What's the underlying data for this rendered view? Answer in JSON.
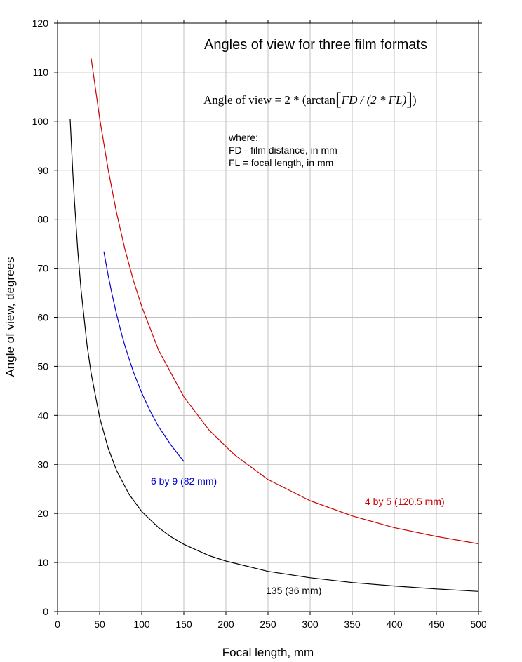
{
  "chart_data": {
    "type": "line",
    "title": "Angles of view for three film formats",
    "formula": {
      "prefix": "Angle of view = 2 * (arctan",
      "inner": "FD / (2 * FL)",
      "suffix": ")"
    },
    "notes": [
      "where:",
      "FD - film distance, in mm",
      "FL = focal length, in mm"
    ],
    "xlabel": "Focal length, mm",
    "ylabel": "Angle of view, degrees",
    "xlim": [
      0,
      500
    ],
    "ylim": [
      0,
      120
    ],
    "xticks": [
      0,
      50,
      100,
      150,
      200,
      250,
      300,
      350,
      400,
      450,
      500
    ],
    "yticks": [
      0,
      10,
      20,
      30,
      40,
      50,
      60,
      70,
      80,
      90,
      100,
      110,
      120
    ],
    "grid": true,
    "series": [
      {
        "name": "4 by 5 (120.5 mm)",
        "color": "#cc0000",
        "x": [
          40,
          50,
          60,
          70,
          80,
          90,
          100,
          120,
          150,
          180,
          210,
          250,
          300,
          350,
          400,
          450,
          500
        ],
        "y": [
          112.8,
          100.6,
          90.3,
          81.4,
          73.9,
          67.6,
          62.2,
          53.3,
          43.8,
          37.0,
          32.0,
          26.9,
          22.6,
          19.5,
          17.1,
          15.3,
          13.8
        ]
      },
      {
        "name": "6 by 9 (82 mm)",
        "color": "#0000cc",
        "x": [
          55,
          60,
          65,
          70,
          75,
          80,
          90,
          100,
          110,
          120,
          135,
          150
        ],
        "y": [
          73.4,
          68.7,
          64.5,
          60.7,
          57.3,
          54.2,
          48.9,
          44.6,
          40.9,
          37.7,
          33.9,
          30.6
        ]
      },
      {
        "name": "135 (36 mm)",
        "color": "#000000",
        "x": [
          15,
          18,
          20,
          24,
          28,
          35,
          40,
          50,
          60,
          70,
          85,
          100,
          120,
          135,
          150,
          180,
          200,
          250,
          300,
          350,
          400,
          450,
          500
        ],
        "y": [
          100.4,
          90.0,
          84.0,
          73.7,
          65.5,
          54.4,
          48.5,
          39.6,
          33.4,
          28.8,
          23.9,
          20.4,
          17.1,
          15.2,
          13.7,
          11.4,
          10.3,
          8.2,
          6.9,
          5.9,
          5.2,
          4.6,
          4.1
        ]
      }
    ]
  }
}
